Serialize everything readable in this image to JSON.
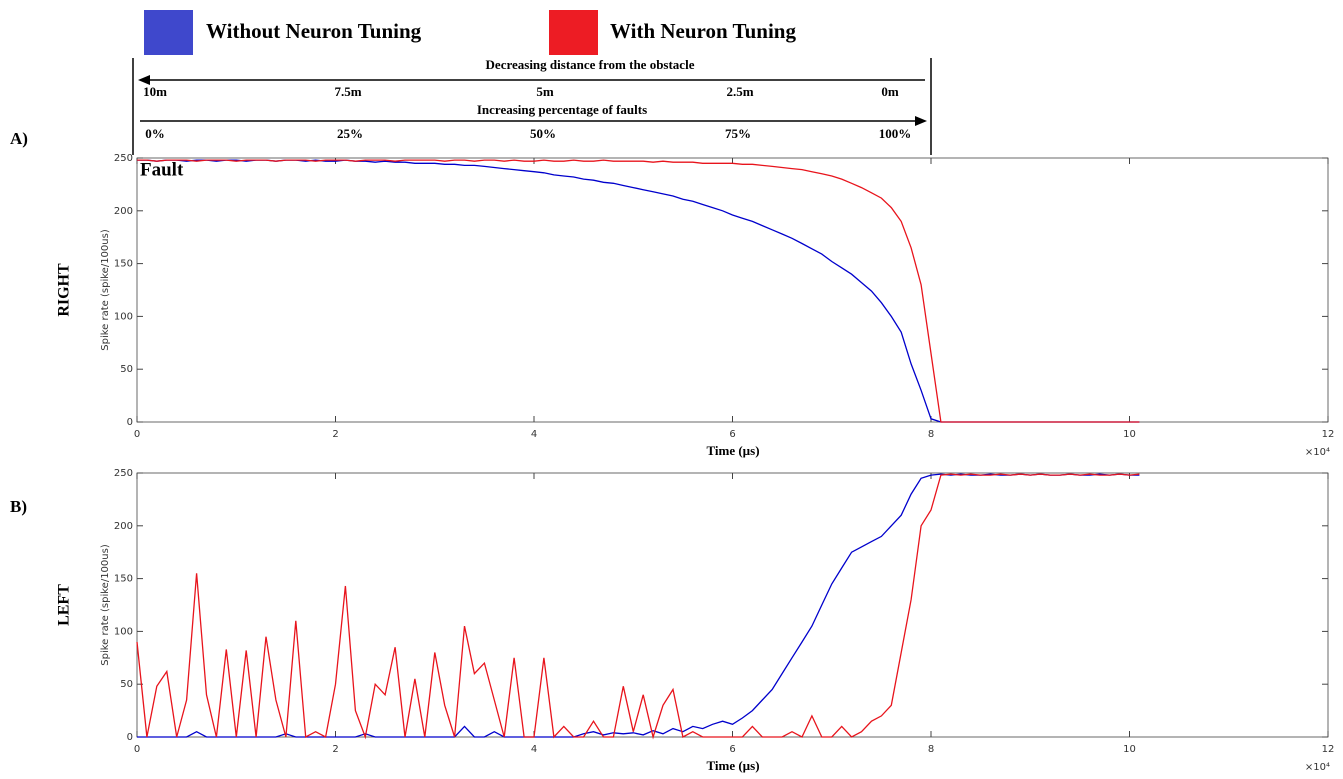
{
  "chart_data": [
    {
      "type": "line",
      "panel": "A)",
      "side_label": "RIGHT",
      "ylabel": "Spike rate (spike/100us)",
      "xlabel": "Time (µs)",
      "x_multiplier": "×10⁴",
      "xlim": [
        0,
        12
      ],
      "xticks": [
        0,
        2,
        4,
        6,
        8,
        10,
        12
      ],
      "ylim": [
        0,
        250
      ],
      "yticks": [
        0,
        50,
        100,
        150,
        200,
        250
      ],
      "grid": false,
      "x": [
        0,
        0.1,
        0.2,
        0.3,
        0.4,
        0.5,
        0.6,
        0.7,
        0.8,
        0.9,
        1,
        1.1,
        1.2,
        1.3,
        1.4,
        1.5,
        1.6,
        1.7,
        1.8,
        1.9,
        2,
        2.1,
        2.2,
        2.3,
        2.4,
        2.5,
        2.6,
        2.7,
        2.8,
        2.9,
        3,
        3.1,
        3.2,
        3.3,
        3.4,
        3.5,
        3.6,
        3.7,
        3.8,
        3.9,
        4,
        4.1,
        4.2,
        4.3,
        4.4,
        4.5,
        4.6,
        4.7,
        4.8,
        4.9,
        5,
        5.1,
        5.2,
        5.3,
        5.4,
        5.5,
        5.6,
        5.7,
        5.8,
        5.9,
        6,
        6.1,
        6.2,
        6.3,
        6.4,
        6.5,
        6.6,
        6.7,
        6.8,
        6.9,
        7,
        7.1,
        7.2,
        7.3,
        7.4,
        7.5,
        7.6,
        7.7,
        7.8,
        7.9,
        8,
        8.1,
        8.2,
        8.3,
        8.4,
        8.5,
        8.6,
        8.7,
        8.8,
        8.9,
        9,
        9.1,
        9.2,
        9.3,
        9.4,
        9.5,
        9.6,
        9.7,
        9.8,
        9.9,
        10,
        10.1
      ],
      "series": [
        {
          "name": "Without Neuron Tuning",
          "color": "#0000cc",
          "values": [
            248,
            248,
            247,
            248,
            248,
            247,
            248,
            248,
            247,
            248,
            248,
            247,
            248,
            248,
            247,
            248,
            248,
            247,
            248,
            247,
            247,
            248,
            247,
            247,
            246,
            247,
            246,
            246,
            245,
            245,
            245,
            244,
            244,
            243,
            243,
            242,
            241,
            240,
            239,
            238,
            237,
            236,
            234,
            233,
            232,
            230,
            229,
            227,
            226,
            224,
            222,
            220,
            218,
            216,
            214,
            211,
            209,
            206,
            203,
            200,
            196,
            193,
            190,
            186,
            182,
            178,
            174,
            169,
            164,
            159,
            152,
            146,
            140,
            132,
            124,
            113,
            100,
            85,
            55,
            30,
            3,
            0,
            0,
            0,
            0,
            0,
            0,
            0,
            0,
            0,
            0,
            0,
            0,
            0,
            0,
            0,
            0,
            0,
            0,
            0,
            0,
            0
          ]
        },
        {
          "name": "With Neuron Tuning",
          "color": "#e8141c",
          "values": [
            248,
            248,
            247,
            248,
            248,
            248,
            247,
            248,
            248,
            248,
            247,
            248,
            248,
            248,
            247,
            248,
            248,
            248,
            247,
            248,
            248,
            248,
            247,
            248,
            248,
            248,
            247,
            248,
            248,
            248,
            248,
            247,
            248,
            248,
            247,
            248,
            248,
            247,
            248,
            247,
            247,
            248,
            247,
            247,
            248,
            247,
            247,
            248,
            247,
            247,
            247,
            247,
            246,
            247,
            246,
            246,
            246,
            245,
            245,
            245,
            245,
            244,
            244,
            243,
            242,
            241,
            240,
            239,
            237,
            235,
            233,
            230,
            226,
            222,
            217,
            212,
            203,
            190,
            165,
            130,
            65,
            0,
            0,
            0,
            0,
            0,
            0,
            0,
            0,
            0,
            0,
            0,
            0,
            0,
            0,
            0,
            0,
            0,
            0,
            0,
            0,
            0
          ]
        }
      ]
    },
    {
      "type": "line",
      "panel": "B)",
      "side_label": "LEFT",
      "ylabel": "Spike rate (spike/100us)",
      "xlabel": "Time (µs)",
      "x_multiplier": "×10⁴",
      "xlim": [
        0,
        12
      ],
      "xticks": [
        0,
        2,
        4,
        6,
        8,
        10,
        12
      ],
      "ylim": [
        0,
        250
      ],
      "yticks": [
        0,
        50,
        100,
        150,
        200,
        250
      ],
      "grid": false,
      "x": [
        0,
        0.1,
        0.2,
        0.3,
        0.4,
        0.5,
        0.6,
        0.7,
        0.8,
        0.9,
        1,
        1.1,
        1.2,
        1.3,
        1.4,
        1.5,
        1.6,
        1.7,
        1.8,
        1.9,
        2,
        2.1,
        2.2,
        2.3,
        2.4,
        2.5,
        2.6,
        2.7,
        2.8,
        2.9,
        3,
        3.1,
        3.2,
        3.3,
        3.4,
        3.5,
        3.6,
        3.7,
        3.8,
        3.9,
        4,
        4.1,
        4.2,
        4.3,
        4.4,
        4.5,
        4.6,
        4.7,
        4.8,
        4.9,
        5,
        5.1,
        5.2,
        5.3,
        5.4,
        5.5,
        5.6,
        5.7,
        5.8,
        5.9,
        6,
        6.1,
        6.2,
        6.3,
        6.4,
        6.5,
        6.6,
        6.7,
        6.8,
        6.9,
        7,
        7.1,
        7.2,
        7.3,
        7.4,
        7.5,
        7.6,
        7.7,
        7.8,
        7.9,
        8,
        8.1,
        8.2,
        8.3,
        8.4,
        8.5,
        8.6,
        8.7,
        8.8,
        8.9,
        9,
        9.1,
        9.2,
        9.3,
        9.4,
        9.5,
        9.6,
        9.7,
        9.8,
        9.9,
        10,
        10.1
      ],
      "series": [
        {
          "name": "Without Neuron Tuning",
          "color": "#0000cc",
          "values": [
            0,
            0,
            0,
            0,
            0,
            0,
            5,
            0,
            0,
            0,
            0,
            0,
            0,
            0,
            0,
            3,
            0,
            0,
            0,
            0,
            0,
            0,
            0,
            3,
            0,
            0,
            0,
            0,
            0,
            0,
            0,
            0,
            0,
            10,
            0,
            0,
            5,
            0,
            0,
            0,
            0,
            0,
            0,
            0,
            0,
            3,
            5,
            2,
            4,
            3,
            4,
            2,
            6,
            3,
            8,
            5,
            10,
            8,
            12,
            15,
            12,
            18,
            25,
            35,
            45,
            60,
            75,
            90,
            105,
            125,
            145,
            160,
            175,
            180,
            185,
            190,
            200,
            210,
            230,
            245,
            248,
            249,
            248,
            249,
            248,
            248,
            249,
            248,
            248,
            249,
            248,
            249,
            248,
            248,
            249,
            248,
            248,
            249,
            248,
            249,
            248,
            248
          ]
        },
        {
          "name": "With Neuron Tuning",
          "color": "#e8141c",
          "values": [
            90,
            0,
            48,
            62,
            0,
            35,
            155,
            40,
            0,
            83,
            0,
            82,
            0,
            95,
            35,
            0,
            110,
            0,
            5,
            0,
            50,
            143,
            25,
            0,
            50,
            40,
            85,
            0,
            55,
            0,
            80,
            30,
            0,
            105,
            60,
            70,
            35,
            0,
            75,
            0,
            0,
            75,
            0,
            10,
            0,
            0,
            15,
            0,
            0,
            48,
            5,
            40,
            0,
            30,
            45,
            0,
            5,
            0,
            0,
            0,
            0,
            0,
            10,
            0,
            0,
            0,
            5,
            0,
            20,
            0,
            0,
            10,
            0,
            5,
            15,
            20,
            30,
            80,
            130,
            200,
            215,
            248,
            249,
            248,
            249,
            248,
            248,
            249,
            248,
            249,
            248,
            249,
            248,
            248,
            249,
            248,
            249,
            248,
            248,
            249,
            248,
            249
          ]
        }
      ]
    }
  ],
  "scale_diagram": {
    "distance_caption": "Decreasing distance from the obstacle",
    "distances": [
      "10m",
      "7.5m",
      "5m",
      "2.5m",
      "0m"
    ],
    "fault_caption": "Increasing percentage of faults",
    "faults": [
      "0%",
      "25%",
      "50%",
      "75%",
      "100%"
    ],
    "fault_label": "Fault"
  }
}
